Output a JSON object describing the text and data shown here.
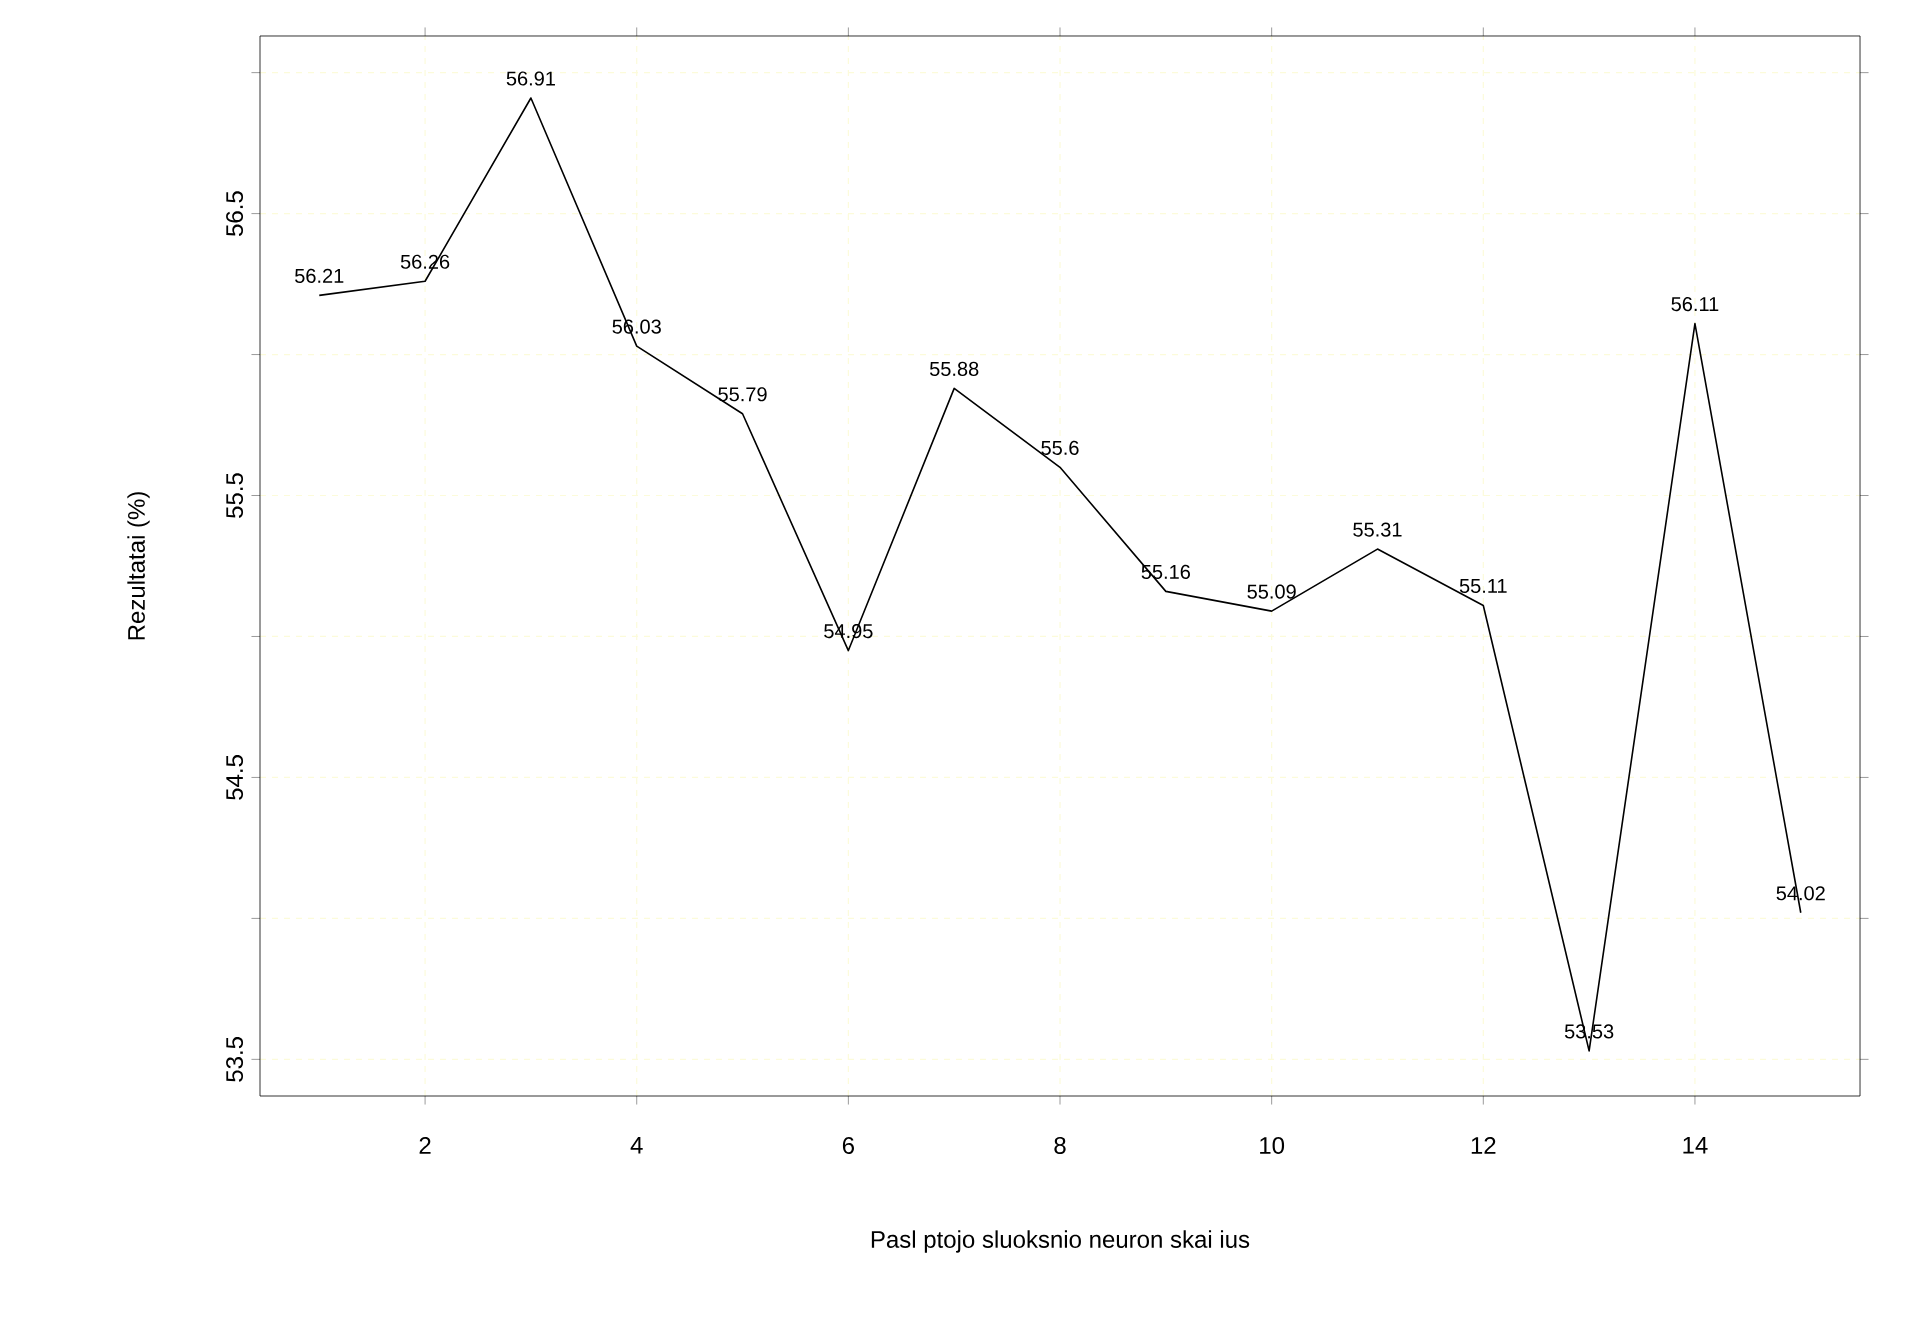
{
  "chart_data": {
    "type": "line",
    "xlabel": "Pasl ptojo sluoksnio neuron skai ius",
    "ylabel": "Rezultatai (%)",
    "x": [
      1,
      2,
      3,
      4,
      5,
      6,
      7,
      8,
      9,
      10,
      11,
      12,
      13,
      14,
      15
    ],
    "series": [
      {
        "color": "#000000",
        "values": [
          56.21,
          56.26,
          56.91,
          56.03,
          55.79,
          54.95,
          55.88,
          55.6,
          55.16,
          55.09,
          55.31,
          55.11,
          53.53,
          56.11,
          54.02
        ]
      }
    ],
    "xlim": [
      0.44,
      15.56
    ],
    "ylim": [
      53.37,
      57.13
    ],
    "xticks": [
      2,
      4,
      6,
      8,
      10,
      12,
      14
    ],
    "yticks": [
      53.5,
      {
        "value": 54,
        "label": null
      },
      54.5,
      {
        "value": 55,
        "label": null
      },
      55.5,
      {
        "value": 56,
        "label": null
      },
      56.5,
      {
        "value": 57,
        "label": null
      }
    ],
    "grid": true,
    "data_labels": true,
    "marker": "none",
    "line_style": "solid"
  }
}
